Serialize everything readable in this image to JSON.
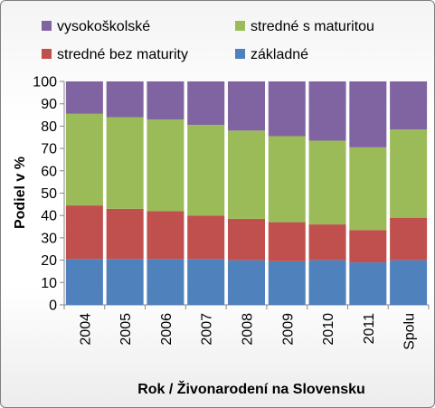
{
  "chart_data": {
    "type": "bar",
    "stacked": true,
    "percent": true,
    "categories": [
      "2004",
      "2005",
      "2006",
      "2007",
      "2008",
      "2009",
      "2010",
      "2011",
      "Spolu"
    ],
    "series": [
      {
        "name": "základné",
        "color": "#4f81bd",
        "values": [
          20.5,
          20.5,
          20.5,
          20.5,
          20,
          19.5,
          20,
          19,
          20
        ]
      },
      {
        "name": "stredné bez maturity",
        "color": "#c0504d",
        "values": [
          24,
          22.5,
          21.5,
          19.5,
          18.5,
          17.5,
          16,
          14.5,
          19
        ]
      },
      {
        "name": "stredné s maturitou",
        "color": "#9bbb59",
        "values": [
          41,
          41,
          41,
          40.5,
          39.5,
          38.5,
          37.5,
          37,
          39.5
        ]
      },
      {
        "name": "vysokoškolské",
        "color": "#8064a2",
        "values": [
          14.5,
          16,
          17,
          19.5,
          22,
          24.5,
          26.5,
          29.5,
          21.5
        ]
      }
    ],
    "ylim": [
      0,
      100
    ],
    "yticks": [
      "0",
      "10",
      "20",
      "30",
      "40",
      "50",
      "60",
      "70",
      "80",
      "90",
      "100"
    ],
    "xlabel": "Rok / Živonarodení na Slovensku",
    "ylabel": "Podiel v %",
    "grid": false,
    "legend": {
      "position": "top",
      "order": [
        "vysokoškolské",
        "stredné s maturitou",
        "stredné bez maturity",
        "základné"
      ]
    }
  }
}
